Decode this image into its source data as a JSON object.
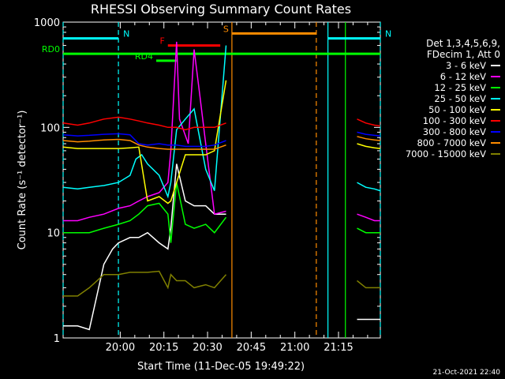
{
  "chart_data": {
    "type": "line",
    "title": "RHESSI Observing Summary Count Rates",
    "xlabel": "Start Time (11-Dec-05 19:49:22)",
    "ylabel": "Count Rate (s⁻¹ detector⁻¹)",
    "yscale": "log",
    "ylim": [
      1,
      1000
    ],
    "xlim_minutes": [
      -9,
      100
    ],
    "x_ticks": [
      "20:00",
      "20:15",
      "20:30",
      "20:45",
      "21:00",
      "21:15"
    ],
    "y_ticks": [
      "1",
      "10",
      "100",
      "1000"
    ],
    "legend_header": [
      "Det 1,3,4,5,6,9,",
      "FDecim 1, Att 0"
    ],
    "series": [
      {
        "name": "3 - 6 keV",
        "color": "#ffffff",
        "x": [
          -9,
          -4,
          0,
          5,
          8,
          10,
          14,
          17,
          20,
          24,
          27,
          28,
          30,
          33,
          36,
          40,
          43,
          47
        ],
        "y": [
          1.3,
          1.3,
          1.2,
          5,
          7,
          8,
          9,
          9,
          10,
          8,
          7,
          11,
          45,
          20,
          18,
          18,
          15,
          15
        ]
      },
      {
        "name": "6 - 12 keV",
        "color": "#ff00ff",
        "x": [
          -9,
          -4,
          0,
          5,
          10,
          14,
          17,
          20,
          24,
          27,
          28,
          30,
          31,
          34,
          36,
          38,
          40,
          43,
          47
        ],
        "y": [
          13,
          13,
          14,
          15,
          17,
          18,
          20,
          22,
          24,
          30,
          60,
          650,
          120,
          70,
          550,
          200,
          70,
          15,
          16
        ]
      },
      {
        "name": "12 - 25 keV",
        "color": "#00ff00",
        "x": [
          -9,
          -4,
          0,
          5,
          10,
          14,
          17,
          20,
          24,
          27,
          28,
          30,
          33,
          36,
          40,
          43,
          47
        ],
        "y": [
          10,
          10,
          10,
          11,
          12,
          13,
          15,
          18,
          19,
          15,
          8,
          30,
          12,
          11,
          12,
          10,
          14
        ]
      },
      {
        "name": "25 - 50 keV",
        "color": "#00ffff",
        "x": [
          -9,
          -4,
          0,
          5,
          10,
          14,
          16,
          18,
          20,
          24,
          27,
          28,
          30,
          33,
          36,
          40,
          43,
          47
        ],
        "y": [
          27,
          26,
          27,
          28,
          30,
          35,
          50,
          55,
          45,
          35,
          22,
          30,
          95,
          120,
          150,
          40,
          25,
          600
        ]
      },
      {
        "name": "50 - 100 keV",
        "color": "#ffff00",
        "x": [
          -9,
          -4,
          0,
          5,
          10,
          14,
          17,
          20,
          24,
          27,
          28,
          30,
          33,
          36,
          40,
          43,
          47
        ],
        "y": [
          65,
          63,
          63,
          63,
          63,
          64,
          65,
          20,
          22,
          19,
          20,
          30,
          55,
          55,
          55,
          60,
          280
        ]
      },
      {
        "name": "100 - 300 keV",
        "color": "#ff0000",
        "x": [
          -9,
          -4,
          0,
          5,
          10,
          14,
          17,
          20,
          24,
          27,
          28,
          30,
          33,
          36,
          40,
          43,
          47
        ],
        "y": [
          110,
          105,
          110,
          120,
          125,
          120,
          115,
          110,
          105,
          100,
          100,
          100,
          95,
          100,
          100,
          100,
          110
        ]
      },
      {
        "name": "300 - 800 keV",
        "color": "#0000ff",
        "x": [
          -9,
          -4,
          0,
          5,
          10,
          14,
          17,
          20,
          24,
          27,
          28,
          30,
          33,
          36,
          40,
          43,
          47
        ],
        "y": [
          85,
          83,
          84,
          86,
          87,
          85,
          70,
          68,
          70,
          68,
          68,
          68,
          66,
          66,
          66,
          68,
          75
        ]
      },
      {
        "name": "800 - 7000 keV",
        "color": "#ff8c00",
        "x": [
          -9,
          -4,
          0,
          5,
          10,
          14,
          17,
          20,
          24,
          27,
          28,
          30,
          33,
          36,
          40,
          43,
          47
        ],
        "y": [
          75,
          73,
          74,
          76,
          77,
          75,
          68,
          65,
          63,
          62,
          62,
          62,
          62,
          62,
          62,
          62,
          68
        ]
      },
      {
        "name": "7000 - 15000 keV",
        "color": "#808000",
        "x": [
          -9,
          -4,
          0,
          5,
          10,
          14,
          17,
          20,
          24,
          27,
          28,
          30,
          33,
          36,
          40,
          43,
          47
        ],
        "y": [
          2.5,
          2.5,
          3,
          4,
          4,
          4.2,
          4.2,
          4.2,
          4.3,
          3,
          4,
          3.5,
          3.5,
          3,
          3.2,
          3,
          4
        ]
      }
    ],
    "series_after_gap": {
      "x": [
        92,
        95,
        98,
        100
      ],
      "values": [
        [
          1.5,
          1.5,
          1.5,
          1.5
        ],
        [
          15,
          14,
          13,
          13
        ],
        [
          11,
          10,
          10,
          10
        ],
        [
          30,
          27,
          26,
          25
        ],
        [
          70,
          66,
          64,
          63
        ],
        [
          120,
          110,
          105,
          103
        ],
        [
          90,
          86,
          84,
          83
        ],
        [
          82,
          78,
          76,
          75
        ],
        [
          3.5,
          3,
          3,
          3
        ]
      ]
    },
    "annotations": [
      {
        "label": "N",
        "color": "#00ffff",
        "x1": -9,
        "x2": 10,
        "y": 700
      },
      {
        "label": "N",
        "color": "#00ffff",
        "x1": 82,
        "x2": 100,
        "y": 700
      },
      {
        "label": "S",
        "color": "#ff8c00",
        "x1": 49,
        "x2": 78,
        "y": 780
      },
      {
        "label": "F",
        "color": "#ff0000",
        "x1": 27,
        "x2": 45,
        "y": 600
      },
      {
        "label": "RD0",
        "color": "#00ff00",
        "x1": -9,
        "x2": 100,
        "y": 500
      },
      {
        "label": "RD4",
        "color": "#00ff00",
        "x1": 23,
        "x2": 30,
        "y": 430
      }
    ],
    "vertical_markers": [
      {
        "x": -9,
        "color": "#00ffff",
        "style": "dashed"
      },
      {
        "x": 10,
        "color": "#00ffff",
        "style": "dashed"
      },
      {
        "x": 49,
        "color": "#ff8c00",
        "style": "solid"
      },
      {
        "x": 78,
        "color": "#ff8c00",
        "style": "dashed"
      },
      {
        "x": 82,
        "color": "#00ffff",
        "style": "solid"
      },
      {
        "x": 100,
        "color": "#00ffff",
        "style": "dashed"
      },
      {
        "x": 88,
        "color": "#00ff00",
        "style": "solid"
      }
    ]
  },
  "timestamp": "21-Oct-2021 22:40"
}
